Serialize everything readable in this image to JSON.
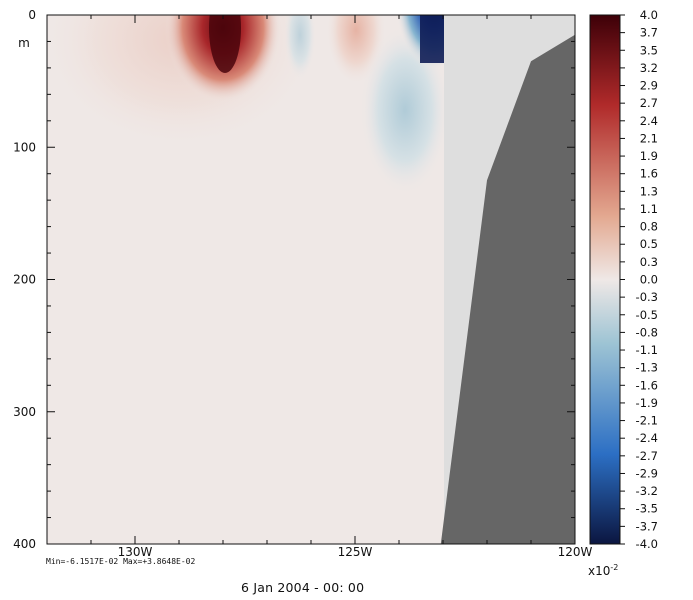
{
  "chart_data": {
    "type": "heatmap",
    "title": "",
    "xlabel": "",
    "ylabel": "m",
    "x_axis": {
      "type": "longitude",
      "range": [
        -132.0,
        -120.0
      ],
      "ticks": [
        -130,
        -125,
        -120
      ],
      "tick_labels": [
        "130W",
        "125W",
        "120W"
      ]
    },
    "y_axis": {
      "type": "depth",
      "reversed": true,
      "range": [
        0,
        400
      ],
      "ticks": [
        0,
        100,
        200,
        300,
        400
      ],
      "tick_labels": [
        "0",
        "100",
        "200",
        "300",
        "400"
      ],
      "unit_label": "m"
    },
    "colorbar": {
      "multiplier_label": "x10",
      "multiplier_exponent": "-2",
      "levels": [
        "4.0",
        "3.7",
        "3.5",
        "3.2",
        "2.9",
        "2.7",
        "2.4",
        "2.1",
        "1.9",
        "1.6",
        "1.3",
        "1.1",
        "0.8",
        "0.5",
        "0.3",
        "0.0",
        "-0.3",
        "-0.5",
        "-0.8",
        "-1.1",
        "-1.3",
        "-1.6",
        "-1.9",
        "-2.1",
        "-2.4",
        "-2.7",
        "-2.9",
        "-3.2",
        "-3.5",
        "-3.7",
        "-4.0"
      ],
      "range": [
        -4.0,
        4.0
      ],
      "colors": {
        "top": "#3d0008",
        "upper": "#b02a2a",
        "mid_pos": "#e3a890",
        "zero": "#efe8e6",
        "mid_neg": "#9ec4d4",
        "lower": "#2c6fc4",
        "bottom": "#0b1640"
      }
    },
    "anomaly_features": [
      {
        "kind": "positive",
        "lon": -128.0,
        "depth": 20,
        "value": 3.9
      },
      {
        "kind": "positive",
        "lon": -125.2,
        "depth": 10,
        "value": 1.3
      },
      {
        "kind": "negative",
        "lon": -123.3,
        "depth": 10,
        "value": -4.0
      },
      {
        "kind": "negative",
        "lon": -123.8,
        "depth": 80,
        "value": -1.1
      },
      {
        "kind": "negative",
        "lon": -126.3,
        "depth": 15,
        "value": -0.3
      }
    ],
    "masked_column": {
      "lon_start": -123.05,
      "color": "#dedede"
    },
    "topography": {
      "color": "#666666",
      "outline": [
        {
          "lon": -120.0,
          "depth": 15
        },
        {
          "lon": -121.0,
          "depth": 35
        },
        {
          "lon": -122.0,
          "depth": 125
        },
        {
          "lon": -123.05,
          "depth": 400
        }
      ]
    },
    "stats": {
      "min": -0.061517,
      "max": 0.038648
    }
  },
  "footer": {
    "minmax_text": "Min=-6.1517E-02  Max=+3.8648E-02",
    "timestamp": "6 Jan 2004 - 00: 00"
  }
}
